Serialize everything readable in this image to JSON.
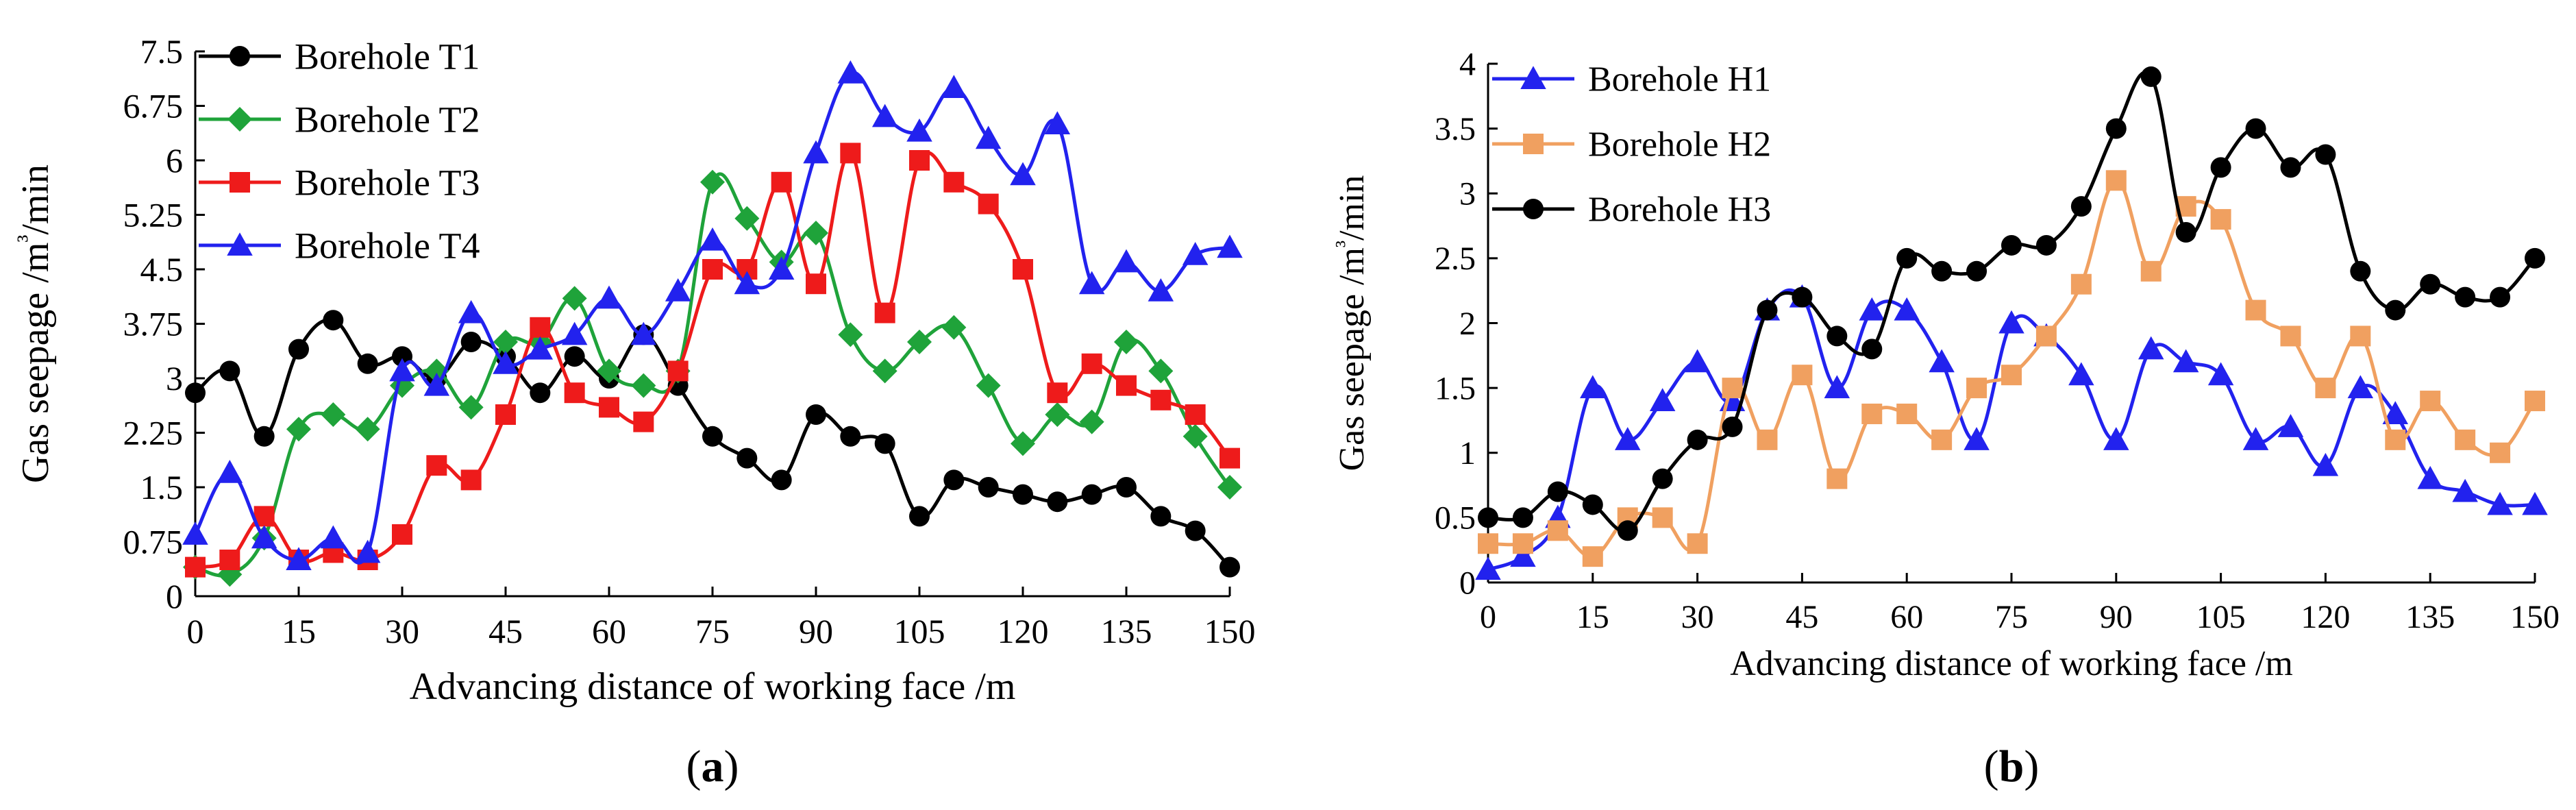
{
  "chart_data": [
    {
      "type": "line",
      "panel_label": "(a)",
      "panel_letter": "a",
      "title": "",
      "xlabel": "Advancing distance of working face /m",
      "ylabel": "Gas seepage /m³/min",
      "xlim": [
        0,
        150
      ],
      "ylim": [
        0,
        7.5
      ],
      "xticks": [
        0,
        15,
        30,
        45,
        60,
        75,
        90,
        105,
        120,
        135,
        150
      ],
      "yticks": [
        "0",
        "0.75",
        "1.5",
        "2.25",
        "3",
        "3.75",
        "4.5",
        "5.25",
        "6",
        "6.75",
        "7.5"
      ],
      "legend_position": "top-left",
      "x": [
        0,
        5,
        10,
        15,
        20,
        25,
        30,
        35,
        40,
        45,
        50,
        55,
        60,
        65,
        70,
        75,
        80,
        85,
        90,
        95,
        100,
        105,
        110,
        115,
        120,
        125,
        130,
        135,
        140,
        145,
        150
      ],
      "series": [
        {
          "name": "Borehole T1",
          "color": "#000000",
          "marker": "circle",
          "values": [
            2.8,
            3.1,
            2.2,
            3.4,
            3.8,
            3.2,
            3.3,
            3.0,
            3.5,
            3.3,
            2.8,
            3.3,
            3.0,
            3.6,
            2.9,
            2.2,
            1.9,
            1.6,
            2.5,
            2.2,
            2.1,
            1.1,
            1.6,
            1.5,
            1.4,
            1.3,
            1.4,
            1.5,
            1.1,
            0.9,
            0.4
          ]
        },
        {
          "name": "Borehole T2",
          "color": "#1fa33a",
          "marker": "diamond",
          "values": [
            0.4,
            0.3,
            0.8,
            2.3,
            2.5,
            2.3,
            2.9,
            3.1,
            2.6,
            3.5,
            3.5,
            4.1,
            3.1,
            2.9,
            3.1,
            5.7,
            5.2,
            4.6,
            5.0,
            3.6,
            3.1,
            3.5,
            3.7,
            2.9,
            2.1,
            2.5,
            2.4,
            3.5,
            3.1,
            2.2,
            1.5
          ]
        },
        {
          "name": "Borehole T3",
          "color": "#ee1b1b",
          "marker": "square",
          "values": [
            0.4,
            0.5,
            1.1,
            0.5,
            0.6,
            0.5,
            0.85,
            1.8,
            1.6,
            2.5,
            3.7,
            2.8,
            2.6,
            2.4,
            3.1,
            4.5,
            4.5,
            5.7,
            4.3,
            6.1,
            3.9,
            6.0,
            5.7,
            5.4,
            4.5,
            2.8,
            3.2,
            2.9,
            2.7,
            2.5,
            1.9
          ]
        },
        {
          "name": "Borehole T4",
          "color": "#2222ee",
          "marker": "triangle",
          "values": [
            0.85,
            1.7,
            0.8,
            0.5,
            0.8,
            0.6,
            3.1,
            2.9,
            3.9,
            3.2,
            3.4,
            3.6,
            4.1,
            3.6,
            4.2,
            4.9,
            4.3,
            4.5,
            6.1,
            7.2,
            6.6,
            6.4,
            7.0,
            6.3,
            5.8,
            6.5,
            4.3,
            4.6,
            4.2,
            4.7,
            4.8
          ]
        }
      ]
    },
    {
      "type": "line",
      "panel_label": "(b)",
      "panel_letter": "b",
      "title": "",
      "xlabel": "Advancing distance of working face /m",
      "ylabel": "Gas seepage /m³/min",
      "xlim": [
        0,
        150
      ],
      "ylim": [
        0,
        4
      ],
      "xticks": [
        0,
        15,
        30,
        45,
        60,
        75,
        90,
        105,
        120,
        135,
        150
      ],
      "yticks": [
        "0",
        "0.5",
        "1",
        "1.5",
        "2",
        "2.5",
        "3",
        "3.5",
        "4"
      ],
      "legend_position": "top-left",
      "x": [
        0,
        5,
        10,
        15,
        20,
        25,
        30,
        35,
        40,
        45,
        50,
        55,
        60,
        65,
        70,
        75,
        80,
        85,
        90,
        95,
        100,
        105,
        110,
        115,
        120,
        125,
        130,
        135,
        140,
        145,
        150
      ],
      "series": [
        {
          "name": "Borehole H1",
          "color": "#2222ee",
          "marker": "triangle",
          "values": [
            0.1,
            0.2,
            0.5,
            1.5,
            1.1,
            1.4,
            1.7,
            1.4,
            2.1,
            2.2,
            1.5,
            2.1,
            2.1,
            1.7,
            1.1,
            2.0,
            1.9,
            1.6,
            1.1,
            1.8,
            1.7,
            1.6,
            1.1,
            1.2,
            0.9,
            1.5,
            1.3,
            0.8,
            0.7,
            0.6,
            0.6
          ]
        },
        {
          "name": "Borehole H2",
          "color": "#f0a060",
          "marker": "square",
          "values": [
            0.3,
            0.3,
            0.4,
            0.2,
            0.5,
            0.5,
            0.3,
            1.5,
            1.1,
            1.6,
            0.8,
            1.3,
            1.3,
            1.1,
            1.5,
            1.6,
            1.9,
            2.3,
            3.1,
            2.4,
            2.9,
            2.8,
            2.1,
            1.9,
            1.5,
            1.9,
            1.1,
            1.4,
            1.1,
            1.0,
            1.4
          ]
        },
        {
          "name": "Borehole H3",
          "color": "#000000",
          "marker": "circle",
          "values": [
            0.5,
            0.5,
            0.7,
            0.6,
            0.4,
            0.8,
            1.1,
            1.2,
            2.1,
            2.2,
            1.9,
            1.8,
            2.5,
            2.4,
            2.4,
            2.6,
            2.6,
            2.9,
            3.5,
            3.9,
            2.7,
            3.2,
            3.5,
            3.2,
            3.3,
            2.4,
            2.1,
            2.3,
            2.2,
            2.2,
            2.5
          ]
        }
      ]
    }
  ]
}
